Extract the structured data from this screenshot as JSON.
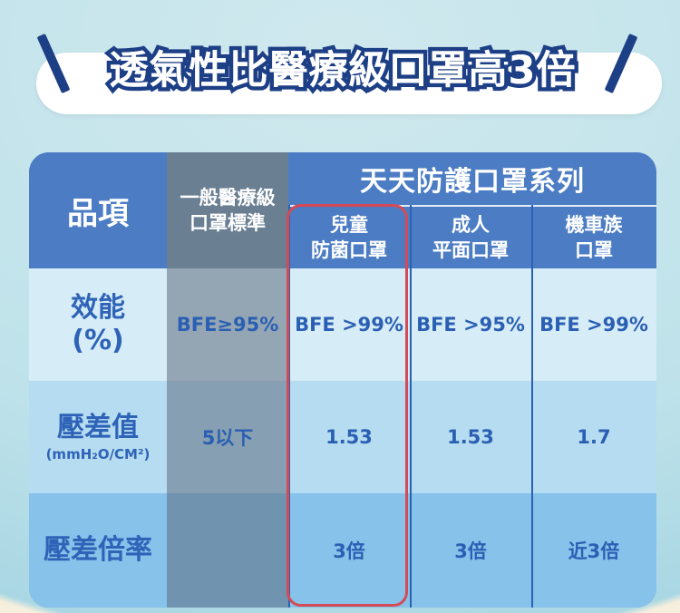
{
  "title": "透氣性比醫療級口罩高3倍",
  "table": {
    "header": {
      "item": "品項",
      "standard": "一般醫療級口罩標準",
      "series": "天天防護口罩系列",
      "products": [
        "兒童\n防菌口罩",
        "成人\n平面口罩",
        "機車族\n口罩"
      ]
    },
    "rows": [
      {
        "label": "效能\n(%)",
        "standard": "BFE≥95%",
        "values": [
          "BFE >99%",
          "BFE >95%",
          "BFE >99%"
        ]
      },
      {
        "label": "壓差值",
        "sublabel": "(mmH₂O/CM²)",
        "standard": "5以下",
        "values": [
          "1.53",
          "1.53",
          "1.7"
        ]
      },
      {
        "label": "壓差倍率",
        "standard": "",
        "values": [
          "3倍",
          "3倍",
          "近3倍"
        ]
      }
    ]
  },
  "colors": {
    "header_blue": "#4c7dc4",
    "title_navy": "#1d3f86",
    "highlight_red": "#d64a55"
  }
}
